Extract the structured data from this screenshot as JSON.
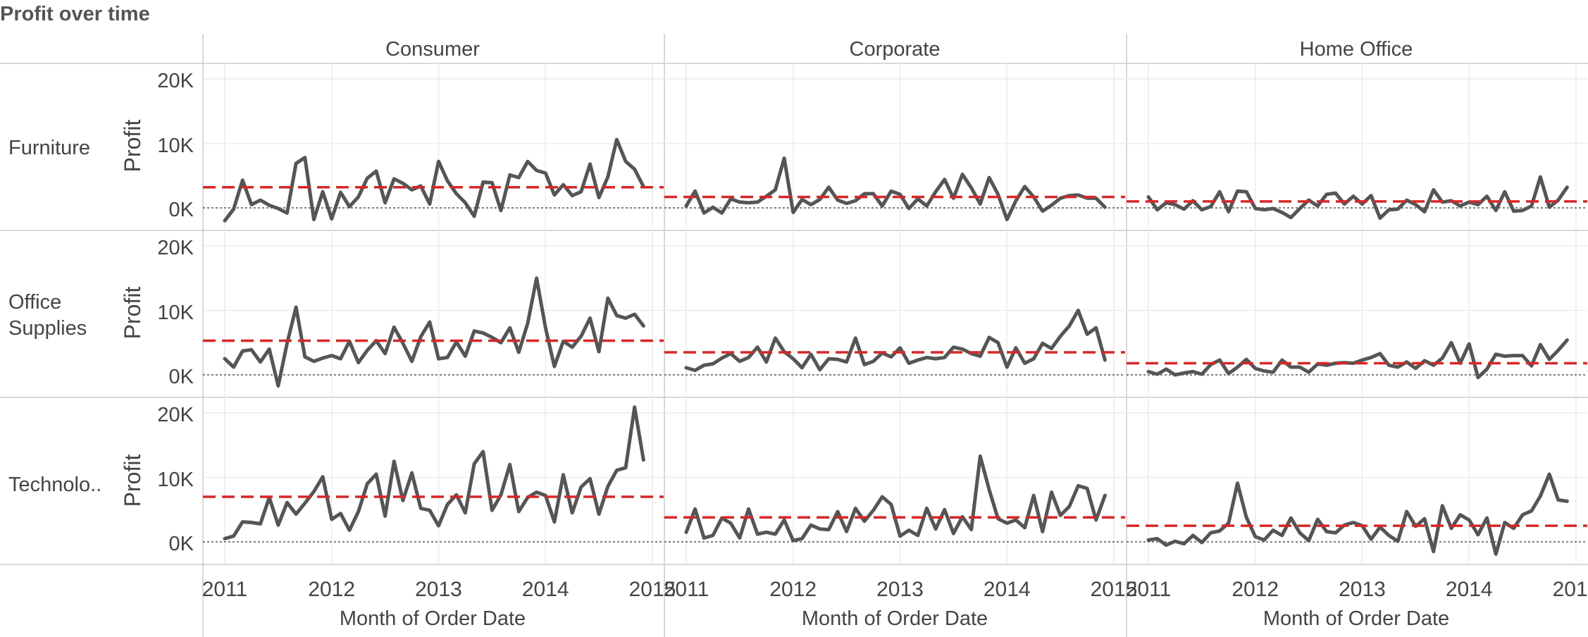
{
  "title": "Profit over time",
  "colors": {
    "line": "#555555",
    "reference": "#d62728",
    "zero": "#555555",
    "grid": "#ececec",
    "border": "#cccccc"
  },
  "chart_data": {
    "type": "line",
    "title": "Profit over time",
    "columns": [
      "Consumer",
      "Corporate",
      "Home Office"
    ],
    "rows": [
      "Furniture",
      "Office Supplies",
      "Technolo.."
    ],
    "ylabel": "Profit",
    "xlabel": "Month of Order Date",
    "x_ticks": [
      "2011",
      "2012",
      "2013",
      "2014",
      "2015"
    ],
    "y_ticks": [
      "0K",
      "10K",
      "20K"
    ],
    "ylim": [
      -3000,
      22000
    ],
    "x": [
      "2011-01",
      "2011-02",
      "2011-03",
      "2011-04",
      "2011-05",
      "2011-06",
      "2011-07",
      "2011-08",
      "2011-09",
      "2011-10",
      "2011-11",
      "2011-12",
      "2012-01",
      "2012-02",
      "2012-03",
      "2012-04",
      "2012-05",
      "2012-06",
      "2012-07",
      "2012-08",
      "2012-09",
      "2012-10",
      "2012-11",
      "2012-12",
      "2013-01",
      "2013-02",
      "2013-03",
      "2013-04",
      "2013-05",
      "2013-06",
      "2013-07",
      "2013-08",
      "2013-09",
      "2013-10",
      "2013-11",
      "2013-12",
      "2014-01",
      "2014-02",
      "2014-03",
      "2014-04",
      "2014-05",
      "2014-06",
      "2014-07",
      "2014-08",
      "2014-09",
      "2014-10",
      "2014-11",
      "2014-12"
    ],
    "reference_line": "average",
    "grid": true,
    "panels": [
      {
        "column": "Consumer",
        "row": "Furniture",
        "average": 3200,
        "values": [
          -2000,
          -200,
          4300,
          500,
          1200,
          400,
          -100,
          -800,
          6900,
          7800,
          -1800,
          2500,
          -1700,
          2400,
          200,
          1700,
          4600,
          5700,
          800,
          4500,
          3800,
          2800,
          3400,
          600,
          7200,
          4200,
          2200,
          800,
          -1300,
          4000,
          3900,
          -400,
          5100,
          4700,
          7200,
          5800,
          5400,
          2000,
          3600,
          1900,
          2500,
          6800,
          1600,
          4800,
          10600,
          7200,
          6000,
          3300
        ]
      },
      {
        "column": "Corporate",
        "row": "Furniture",
        "average": 1700,
        "values": [
          300,
          2600,
          -800,
          100,
          -800,
          1400,
          900,
          800,
          900,
          1800,
          2800,
          7700,
          -700,
          1300,
          500,
          1300,
          3200,
          1200,
          700,
          1100,
          2200,
          2200,
          300,
          2600,
          2100,
          -100,
          1400,
          300,
          2500,
          4400,
          1500,
          5200,
          3100,
          600,
          4700,
          2100,
          -1800,
          1100,
          3300,
          1700,
          -500,
          400,
          1500,
          1900,
          2000,
          1500,
          1500,
          100
        ]
      },
      {
        "column": "Home Office",
        "row": "Furniture",
        "average": 1000,
        "values": [
          1700,
          -300,
          800,
          500,
          -200,
          1100,
          -300,
          200,
          2500,
          -600,
          2600,
          2500,
          -100,
          -300,
          -100,
          -700,
          -1500,
          -100,
          1200,
          300,
          2100,
          2300,
          600,
          1800,
          600,
          1900,
          -1600,
          -300,
          -200,
          1200,
          500,
          -600,
          2800,
          900,
          1100,
          300,
          900,
          500,
          1800,
          -400,
          2500,
          -500,
          -400,
          300,
          4800,
          100,
          1200,
          3200
        ]
      },
      {
        "column": "Consumer",
        "row": "Office Supplies",
        "average": 5300,
        "values": [
          2500,
          1200,
          3700,
          3900,
          2000,
          4000,
          -1700,
          4900,
          10500,
          2800,
          2100,
          2600,
          3000,
          2500,
          5200,
          1900,
          3800,
          5300,
          3300,
          7400,
          4900,
          2100,
          5900,
          8200,
          2500,
          2700,
          5100,
          2900,
          6800,
          6500,
          5800,
          5000,
          7300,
          3500,
          8000,
          15000,
          7300,
          1300,
          5200,
          4300,
          6000,
          8800,
          3600,
          11900,
          9200,
          8800,
          9400,
          7600
        ]
      },
      {
        "column": "Corporate",
        "row": "Office Supplies",
        "average": 3500,
        "values": [
          1100,
          700,
          1500,
          1700,
          2600,
          3300,
          2100,
          2700,
          4300,
          2000,
          5700,
          3600,
          2500,
          1100,
          3200,
          800,
          2500,
          2400,
          2000,
          5700,
          1600,
          2100,
          3400,
          2800,
          4200,
          1800,
          2300,
          2700,
          2500,
          2700,
          4300,
          4000,
          3300,
          2900,
          5800,
          5000,
          1200,
          4200,
          1800,
          2500,
          4900,
          4100,
          6000,
          7600,
          10000,
          6300,
          7300,
          2300
        ]
      },
      {
        "column": "Home Office",
        "row": "Office Supplies",
        "average": 1800,
        "values": [
          500,
          100,
          900,
          0,
          300,
          500,
          100,
          1600,
          2300,
          200,
          1200,
          2400,
          1000,
          600,
          400,
          2300,
          1200,
          1200,
          400,
          1700,
          1500,
          1800,
          1900,
          1800,
          2300,
          2700,
          3300,
          1500,
          1200,
          2000,
          1000,
          2200,
          1500,
          2600,
          5000,
          1800,
          4800,
          -400,
          900,
          3200,
          2900,
          3000,
          3000,
          1400,
          4700,
          2400,
          3800,
          5400
        ]
      },
      {
        "column": "Consumer",
        "row": "Technolo..",
        "average": 7000,
        "values": [
          500,
          900,
          3100,
          3000,
          2800,
          6900,
          2600,
          6100,
          4300,
          6000,
          7800,
          10100,
          3500,
          4400,
          1800,
          4700,
          9000,
          10500,
          4000,
          12500,
          6400,
          10700,
          5200,
          4900,
          2500,
          5800,
          7300,
          4500,
          12100,
          14000,
          4900,
          7300,
          12000,
          4700,
          6900,
          7700,
          7200,
          3100,
          10400,
          4500,
          8500,
          9800,
          4300,
          8600,
          11100,
          11500,
          20900,
          12700
        ]
      },
      {
        "column": "Corporate",
        "row": "Technolo..",
        "average": 3800,
        "values": [
          1500,
          5100,
          600,
          1000,
          3700,
          2900,
          600,
          5100,
          1200,
          1500,
          1200,
          3400,
          200,
          500,
          2600,
          2000,
          1900,
          4700,
          1600,
          5200,
          3200,
          4900,
          7000,
          5800,
          900,
          1800,
          1000,
          5200,
          2000,
          5000,
          1300,
          3900,
          1900,
          13300,
          8100,
          3600,
          2900,
          3400,
          2200,
          7200,
          1600,
          7700,
          4100,
          5500,
          8700,
          8300,
          3400,
          7200
        ]
      },
      {
        "column": "Home Office",
        "row": "Technolo..",
        "average": 2500,
        "values": [
          300,
          500,
          -500,
          100,
          -300,
          1000,
          -100,
          1400,
          1700,
          2900,
          9100,
          3800,
          800,
          300,
          1800,
          1000,
          3700,
          1400,
          200,
          3500,
          1600,
          1400,
          2600,
          3000,
          2500,
          400,
          2300,
          1000,
          100,
          4700,
          2400,
          3600,
          -1500,
          5600,
          2100,
          4200,
          3400,
          1100,
          3700,
          -1900,
          3000,
          2100,
          4200,
          4800,
          7100,
          10500,
          6500,
          6300
        ]
      }
    ]
  }
}
